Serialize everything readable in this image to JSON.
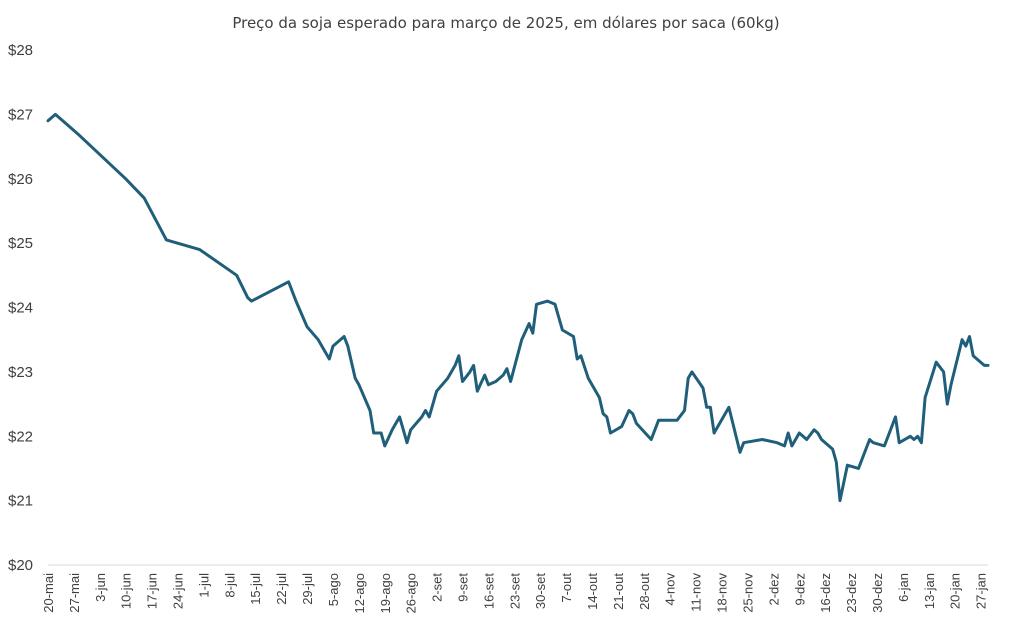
{
  "chart_data": {
    "type": "line",
    "title": "Preço da soja  esperado para março de 2025, em dólares por saca (60kg)",
    "xlabel": "",
    "ylabel": "",
    "ylim": [
      20,
      28
    ],
    "yticks": [
      20,
      21,
      22,
      23,
      24,
      25,
      26,
      27,
      28
    ],
    "ytick_labels": [
      "$20",
      "$21",
      "$22",
      "$23",
      "$24",
      "$25",
      "$26",
      "$27",
      "$28"
    ],
    "x_axis_type": "date",
    "x_start": "2024-05-20",
    "x_end": "2025-01-29",
    "xtick_dates": [
      "2024-05-20",
      "2024-05-27",
      "2024-06-03",
      "2024-06-10",
      "2024-06-17",
      "2024-06-24",
      "2024-07-01",
      "2024-07-08",
      "2024-07-15",
      "2024-07-22",
      "2024-07-29",
      "2024-08-05",
      "2024-08-12",
      "2024-08-19",
      "2024-08-26",
      "2024-09-02",
      "2024-09-09",
      "2024-09-16",
      "2024-09-23",
      "2024-09-30",
      "2024-10-07",
      "2024-10-14",
      "2024-10-21",
      "2024-10-28",
      "2024-11-04",
      "2024-11-11",
      "2024-11-18",
      "2024-11-25",
      "2024-12-02",
      "2024-12-09",
      "2024-12-16",
      "2024-12-23",
      "2024-12-30",
      "2025-01-06",
      "2025-01-13",
      "2025-01-20",
      "2025-01-27"
    ],
    "xtick_labels": [
      "20-mai",
      "27-mai",
      "3-jun",
      "10-jun",
      "17-jun",
      "24-jun",
      "1-jul",
      "8-jul",
      "15-jul",
      "22-jul",
      "29-jul",
      "5-ago",
      "12-ago",
      "19-ago",
      "26-ago",
      "2-set",
      "9-set",
      "16-set",
      "23-set",
      "30-set",
      "7-out",
      "14-out",
      "21-out",
      "28-out",
      "4-nov",
      "11-nov",
      "18-nov",
      "25-nov",
      "2-dez",
      "9-dez",
      "16-dez",
      "23-dez",
      "30-dez",
      "6-jan",
      "13-jan",
      "20-jan",
      "27-jan"
    ],
    "grid": false,
    "legend": "none",
    "series": [
      {
        "color": "#1f5f7a",
        "points": [
          [
            "2024-05-20",
            26.9
          ],
          [
            "2024-05-22",
            27.0
          ],
          [
            "2024-05-28",
            26.7
          ],
          [
            "2024-06-10",
            26.0
          ],
          [
            "2024-06-15",
            25.7
          ],
          [
            "2024-06-21",
            25.05
          ],
          [
            "2024-06-30",
            24.9
          ],
          [
            "2024-07-10",
            24.5
          ],
          [
            "2024-07-13",
            24.15
          ],
          [
            "2024-07-14",
            24.1
          ],
          [
            "2024-07-24",
            24.4
          ],
          [
            "2024-07-26",
            24.1
          ],
          [
            "2024-07-29",
            23.7
          ],
          [
            "2024-08-01",
            23.5
          ],
          [
            "2024-08-04",
            23.2
          ],
          [
            "2024-08-05",
            23.4
          ],
          [
            "2024-08-08",
            23.55
          ],
          [
            "2024-08-09",
            23.4
          ],
          [
            "2024-08-11",
            22.9
          ],
          [
            "2024-08-12",
            22.8
          ],
          [
            "2024-08-15",
            22.4
          ],
          [
            "2024-08-16",
            22.05
          ],
          [
            "2024-08-18",
            22.05
          ],
          [
            "2024-08-19",
            21.85
          ],
          [
            "2024-08-21",
            22.1
          ],
          [
            "2024-08-23",
            22.3
          ],
          [
            "2024-08-25",
            21.9
          ],
          [
            "2024-08-26",
            22.1
          ],
          [
            "2024-08-29",
            22.3
          ],
          [
            "2024-08-30",
            22.4
          ],
          [
            "2024-08-31",
            22.3
          ],
          [
            "2024-09-02",
            22.7
          ],
          [
            "2024-09-05",
            22.9
          ],
          [
            "2024-09-07",
            23.1
          ],
          [
            "2024-09-08",
            23.25
          ],
          [
            "2024-09-09",
            22.85
          ],
          [
            "2024-09-11",
            23.0
          ],
          [
            "2024-09-12",
            23.1
          ],
          [
            "2024-09-13",
            22.7
          ],
          [
            "2024-09-15",
            22.95
          ],
          [
            "2024-09-16",
            22.8
          ],
          [
            "2024-09-18",
            22.85
          ],
          [
            "2024-09-20",
            22.95
          ],
          [
            "2024-09-21",
            23.05
          ],
          [
            "2024-09-22",
            22.85
          ],
          [
            "2024-09-25",
            23.5
          ],
          [
            "2024-09-27",
            23.75
          ],
          [
            "2024-09-28",
            23.6
          ],
          [
            "2024-09-29",
            24.05
          ],
          [
            "2024-10-02",
            24.1
          ],
          [
            "2024-10-04",
            24.05
          ],
          [
            "2024-10-06",
            23.65
          ],
          [
            "2024-10-09",
            23.55
          ],
          [
            "2024-10-10",
            23.2
          ],
          [
            "2024-10-11",
            23.25
          ],
          [
            "2024-10-13",
            22.9
          ],
          [
            "2024-10-16",
            22.6
          ],
          [
            "2024-10-17",
            22.35
          ],
          [
            "2024-10-18",
            22.3
          ],
          [
            "2024-10-19",
            22.05
          ],
          [
            "2024-10-22",
            22.15
          ],
          [
            "2024-10-24",
            22.4
          ],
          [
            "2024-10-25",
            22.35
          ],
          [
            "2024-10-26",
            22.2
          ],
          [
            "2024-10-30",
            21.95
          ],
          [
            "2024-11-01",
            22.25
          ],
          [
            "2024-11-06",
            22.25
          ],
          [
            "2024-11-08",
            22.4
          ],
          [
            "2024-11-09",
            22.9
          ],
          [
            "2024-11-10",
            23.0
          ],
          [
            "2024-11-13",
            22.75
          ],
          [
            "2024-11-14",
            22.45
          ],
          [
            "2024-11-15",
            22.45
          ],
          [
            "2024-11-16",
            22.05
          ],
          [
            "2024-11-20",
            22.45
          ],
          [
            "2024-11-23",
            21.75
          ],
          [
            "2024-11-24",
            21.9
          ],
          [
            "2024-11-29",
            21.95
          ],
          [
            "2024-12-03",
            21.9
          ],
          [
            "2024-12-05",
            21.85
          ],
          [
            "2024-12-06",
            22.05
          ],
          [
            "2024-12-07",
            21.85
          ],
          [
            "2024-12-09",
            22.05
          ],
          [
            "2024-12-11",
            21.95
          ],
          [
            "2024-12-13",
            22.1
          ],
          [
            "2024-12-14",
            22.05
          ],
          [
            "2024-12-15",
            21.95
          ],
          [
            "2024-12-18",
            21.8
          ],
          [
            "2024-12-19",
            21.6
          ],
          [
            "2024-12-20",
            21.0
          ],
          [
            "2024-12-22",
            21.55
          ],
          [
            "2024-12-25",
            21.5
          ],
          [
            "2024-12-28",
            21.95
          ],
          [
            "2024-12-29",
            21.9
          ],
          [
            "2025-01-01",
            21.85
          ],
          [
            "2025-01-04",
            22.3
          ],
          [
            "2025-01-05",
            21.9
          ],
          [
            "2025-01-08",
            22.0
          ],
          [
            "2025-01-09",
            21.95
          ],
          [
            "2025-01-10",
            22.0
          ],
          [
            "2025-01-11",
            21.9
          ],
          [
            "2025-01-12",
            22.6
          ],
          [
            "2025-01-15",
            23.15
          ],
          [
            "2025-01-17",
            23.0
          ],
          [
            "2025-01-18",
            22.5
          ],
          [
            "2025-01-19",
            22.8
          ],
          [
            "2025-01-22",
            23.5
          ],
          [
            "2025-01-23",
            23.4
          ],
          [
            "2025-01-24",
            23.55
          ],
          [
            "2025-01-25",
            23.25
          ],
          [
            "2025-01-26",
            23.2
          ],
          [
            "2025-01-28",
            23.1
          ],
          [
            "2025-01-29",
            23.1
          ]
        ]
      }
    ]
  }
}
